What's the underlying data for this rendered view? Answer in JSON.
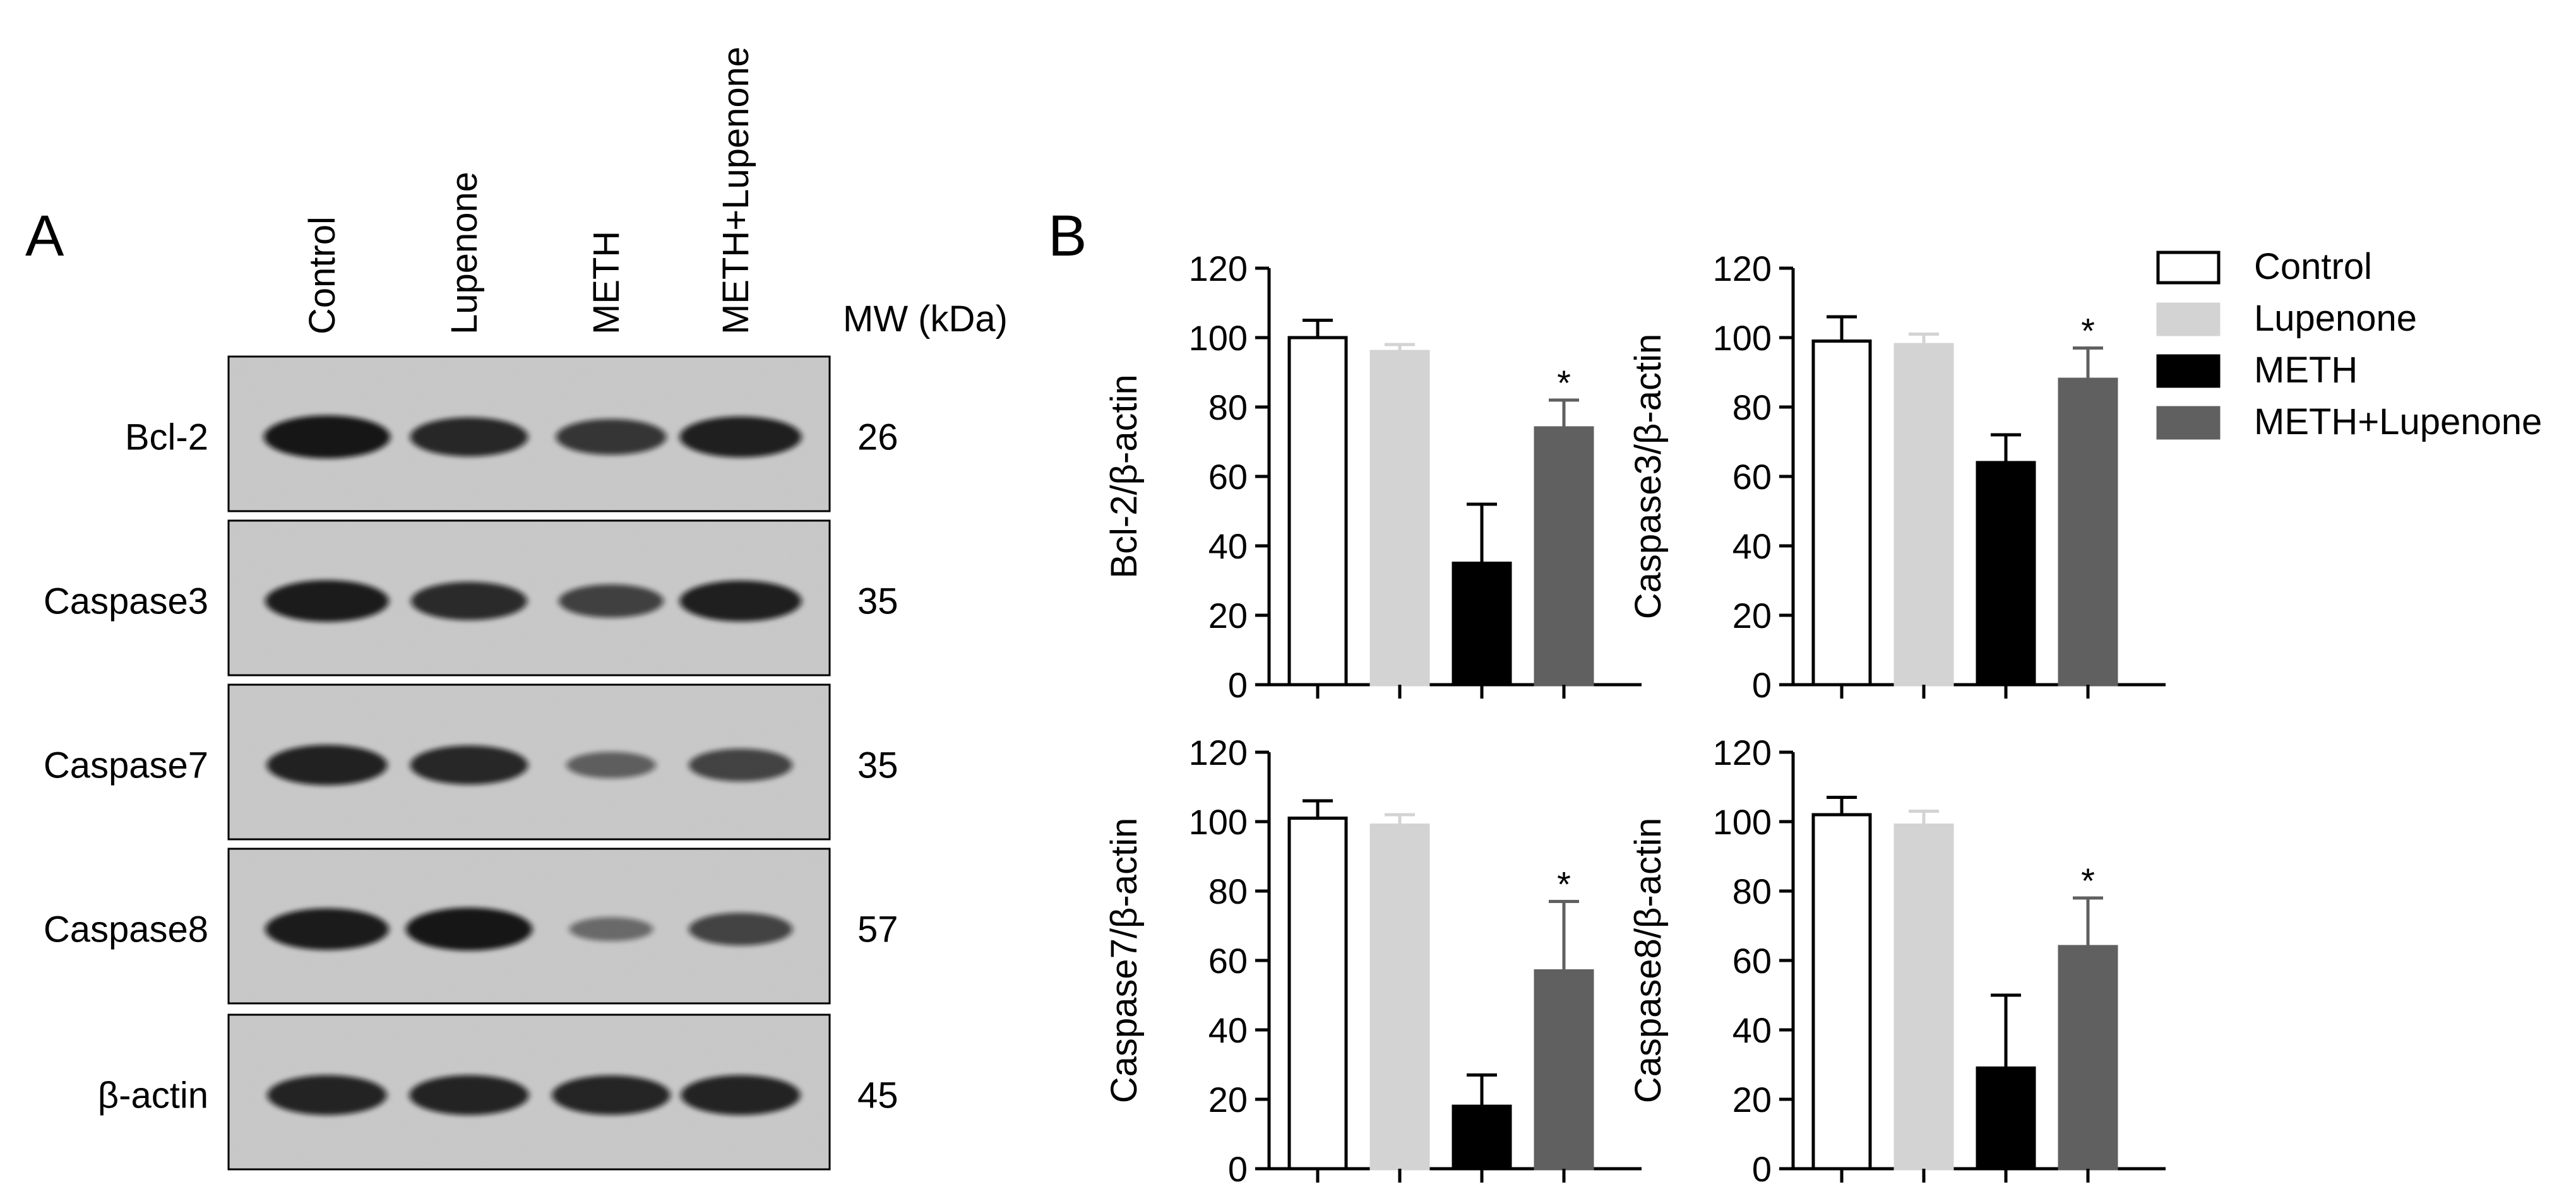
{
  "panel_a": {
    "label": "A",
    "lanes": [
      "Control",
      "Lupenone",
      "METH",
      "METH+Lupenone"
    ],
    "mw_header": "MW (kDa)",
    "blots": [
      {
        "protein": "Bcl-2",
        "mw": "26",
        "intensity": [
          1.0,
          0.85,
          0.72,
          0.92
        ]
      },
      {
        "protein": "Caspase3",
        "mw": "35",
        "intensity": [
          0.95,
          0.82,
          0.62,
          0.92
        ]
      },
      {
        "protein": "Caspase7",
        "mw": "35",
        "intensity": [
          0.9,
          0.85,
          0.35,
          0.6
        ]
      },
      {
        "protein": "Caspase8",
        "mw": "57",
        "intensity": [
          0.95,
          1.0,
          0.25,
          0.6
        ]
      },
      {
        "protein": "β-actin",
        "mw": "45",
        "intensity": [
          0.88,
          0.88,
          0.86,
          0.88
        ]
      }
    ]
  },
  "panel_b": {
    "label": "B",
    "legend": [
      {
        "name": "Control",
        "fill": "#ffffff"
      },
      {
        "name": "Lupenone",
        "fill": "#d3d3d3"
      },
      {
        "name": "METH",
        "fill": "#000000"
      },
      {
        "name": "METH+Lupenone",
        "fill": "#606060"
      }
    ]
  },
  "chart_data": [
    {
      "type": "bar",
      "ylabel": "Bcl-2/β-actin",
      "ylim": [
        0,
        120
      ],
      "yticks": [
        "0",
        "20",
        "40",
        "60",
        "80",
        "100",
        "120"
      ],
      "categories": [
        "Control",
        "Lupenone",
        "METH",
        "METH+Lupenone"
      ],
      "values": [
        100,
        96,
        35,
        74
      ],
      "errors": [
        5,
        2,
        17,
        8
      ],
      "annotations": [
        "",
        "",
        "",
        "*"
      ]
    },
    {
      "type": "bar",
      "ylabel": "Caspase3/β-actin",
      "ylim": [
        0,
        120
      ],
      "yticks": [
        "0",
        "20",
        "40",
        "60",
        "80",
        "100",
        "120"
      ],
      "categories": [
        "Control",
        "Lupenone",
        "METH",
        "METH+Lupenone"
      ],
      "values": [
        99,
        98,
        64,
        88
      ],
      "errors": [
        7,
        3,
        8,
        9
      ],
      "annotations": [
        "",
        "",
        "",
        "*"
      ]
    },
    {
      "type": "bar",
      "ylabel": "Caspase7/β-actin",
      "ylim": [
        0,
        120
      ],
      "yticks": [
        "0",
        "20",
        "40",
        "60",
        "80",
        "100",
        "120"
      ],
      "categories": [
        "Control",
        "Lupenone",
        "METH",
        "METH+Lupenone"
      ],
      "values": [
        101,
        99,
        18,
        57
      ],
      "errors": [
        5,
        3,
        9,
        20
      ],
      "annotations": [
        "",
        "",
        "",
        "*"
      ]
    },
    {
      "type": "bar",
      "ylabel": "Caspase8/β-actin",
      "ylim": [
        0,
        120
      ],
      "yticks": [
        "0",
        "20",
        "40",
        "60",
        "80",
        "100",
        "120"
      ],
      "categories": [
        "Control",
        "Lupenone",
        "METH",
        "METH+Lupenone"
      ],
      "values": [
        102,
        99,
        29,
        64
      ],
      "errors": [
        5,
        4,
        21,
        14
      ],
      "annotations": [
        "",
        "",
        "",
        "*"
      ]
    }
  ]
}
